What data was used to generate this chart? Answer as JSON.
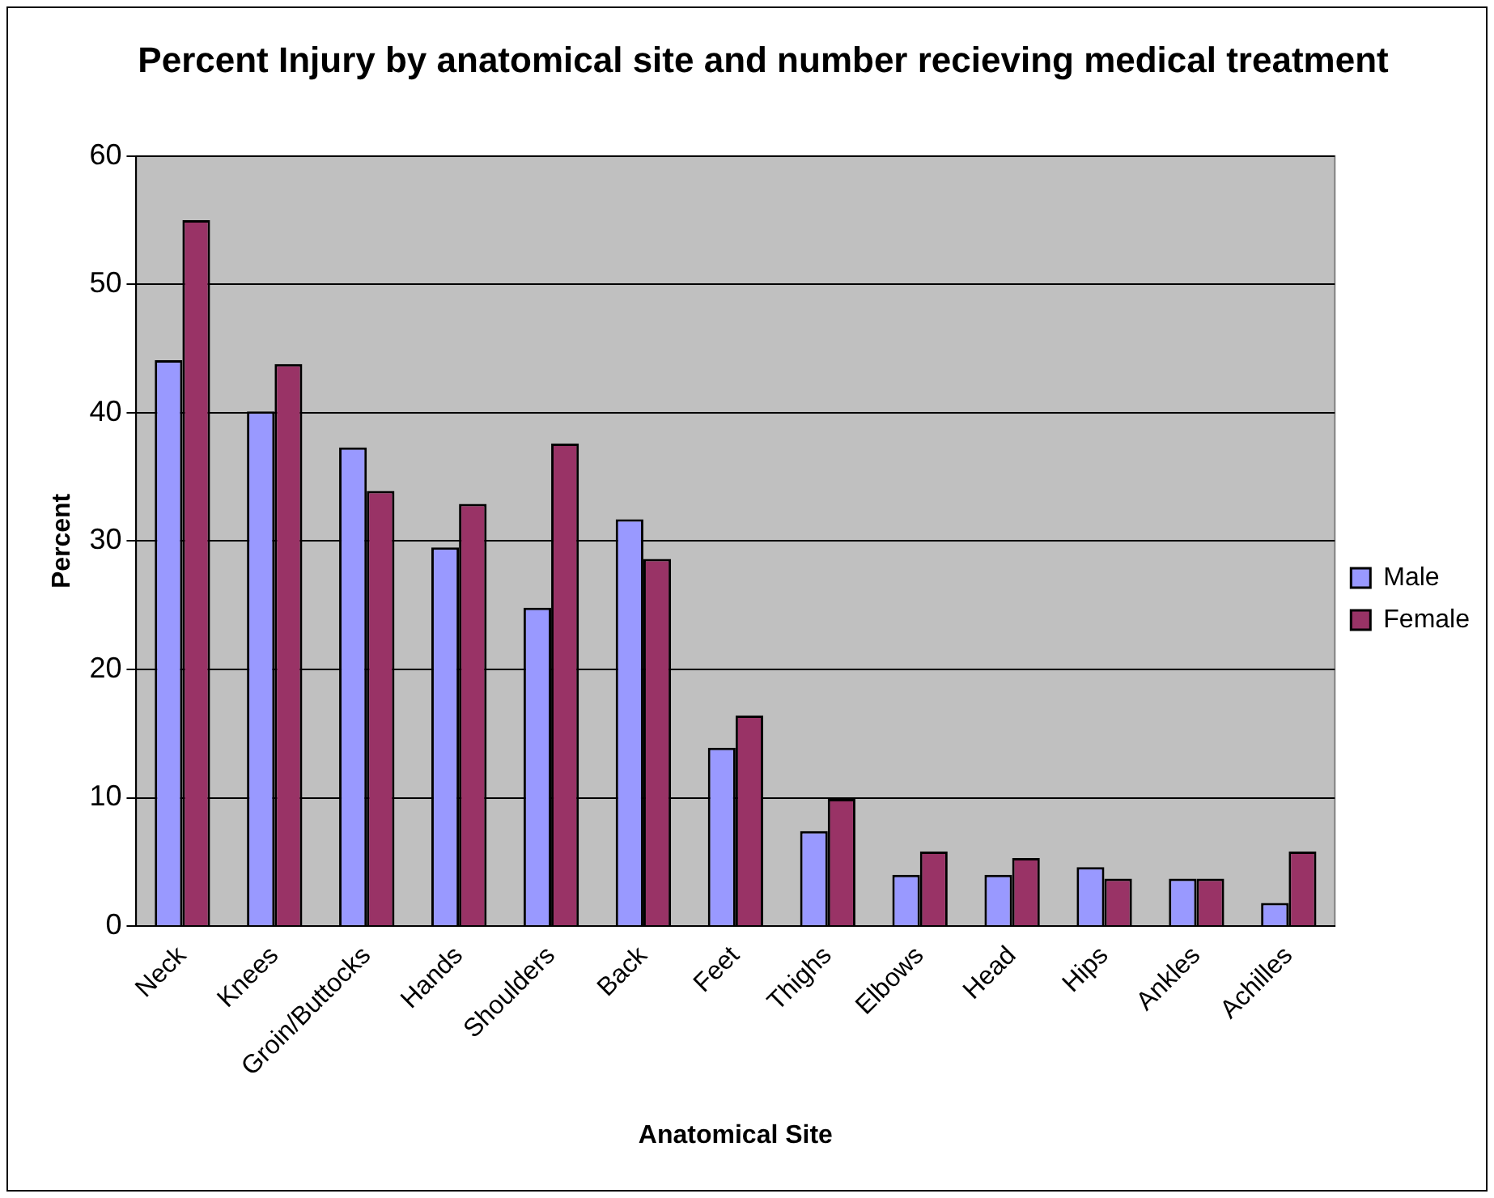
{
  "chart_data": {
    "type": "bar",
    "title": "Percent Injury by anatomical site and number recieving medical treatment",
    "xlabel": "Anatomical Site",
    "ylabel": "Percent",
    "categories": [
      "Neck",
      "Knees",
      "Groin/Buttocks",
      "Hands",
      "Shoulders",
      "Back",
      "Feet",
      "Thighs",
      "Elbows",
      "Head",
      "Hips",
      "Ankles",
      "Achilles"
    ],
    "series": [
      {
        "name": "Male",
        "color": "#9999ff",
        "values": [
          44.1,
          40.1,
          37.3,
          29.5,
          24.8,
          31.7,
          13.9,
          7.4,
          4.0,
          4.0,
          4.6,
          3.7,
          1.8
        ]
      },
      {
        "name": "Female",
        "color": "#993366",
        "values": [
          55.0,
          43.8,
          33.9,
          32.9,
          37.6,
          28.6,
          16.4,
          9.9,
          5.8,
          5.3,
          3.7,
          3.7,
          5.8
        ]
      }
    ],
    "ylim": [
      0,
      60
    ],
    "yticks": [
      0,
      10,
      20,
      30,
      40,
      50,
      60
    ],
    "grid": "y",
    "legend": "right"
  }
}
